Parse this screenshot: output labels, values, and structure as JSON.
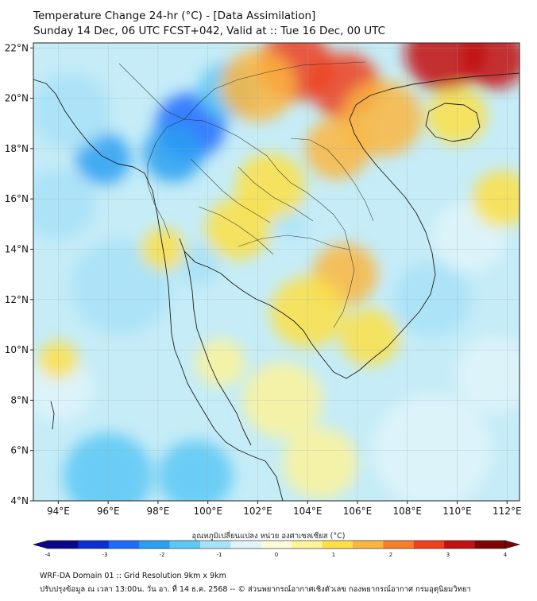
{
  "title": {
    "line1": "Temperature Change 24-hr (°C) - [Data Assimilation]",
    "line2": "Sunday 14 Dec, 06 UTC FCST+042, Valid at :: Tue 16 Dec, 00 UTC"
  },
  "map": {
    "lon_range": [
      93,
      112.5
    ],
    "lat_range": [
      4,
      22.2
    ],
    "lon_ticks": [
      "94°E",
      "96°E",
      "98°E",
      "100°E",
      "102°E",
      "104°E",
      "106°E",
      "108°E",
      "110°E",
      "112°E"
    ],
    "lon_tick_values": [
      94,
      96,
      98,
      100,
      102,
      104,
      106,
      108,
      110,
      112
    ],
    "lat_ticks": [
      "22°N",
      "20°N",
      "18°N",
      "16°N",
      "14°N",
      "12°N",
      "10°N",
      "8°N",
      "6°N",
      "4°N"
    ],
    "lat_tick_values": [
      22,
      20,
      18,
      16,
      14,
      12,
      10,
      8,
      6,
      4
    ],
    "temperature_blobs": [
      {
        "lon": 99.3,
        "lat": 18.9,
        "value": -2.6,
        "r": 1.4
      },
      {
        "lon": 98.6,
        "lat": 17.8,
        "value": -2.1,
        "r": 1.2
      },
      {
        "lon": 95.8,
        "lat": 17.6,
        "value": -1.9,
        "r": 1.1
      },
      {
        "lon": 94.5,
        "lat": 19.5,
        "value": -1.3,
        "r": 1.6
      },
      {
        "lon": 94.0,
        "lat": 15.8,
        "value": -1.2,
        "r": 1.5
      },
      {
        "lon": 100.8,
        "lat": 20.3,
        "value": -1.4,
        "r": 1.2
      },
      {
        "lon": 96.5,
        "lat": 12.5,
        "value": -1.0,
        "r": 2.0
      },
      {
        "lon": 99.6,
        "lat": 13.4,
        "value": -1.1,
        "r": 0.9
      },
      {
        "lon": 103.3,
        "lat": 15.0,
        "value": -0.9,
        "r": 0.6
      },
      {
        "lon": 96.0,
        "lat": 5.0,
        "value": -1.5,
        "r": 1.8
      },
      {
        "lon": 99.5,
        "lat": 5.0,
        "value": -1.4,
        "r": 1.5
      },
      {
        "lon": 94.0,
        "lat": 8.5,
        "value": -0.8,
        "r": 1.4
      },
      {
        "lon": 109.0,
        "lat": 12.0,
        "value": -1.0,
        "r": 1.6
      },
      {
        "lon": 110.5,
        "lat": 14.5,
        "value": -0.8,
        "r": 1.5
      },
      {
        "lon": 109.0,
        "lat": 6.0,
        "value": -0.6,
        "r": 2.4
      },
      {
        "lon": 111.5,
        "lat": 9.0,
        "value": -0.5,
        "r": 1.6
      },
      {
        "lon": 103.5,
        "lat": 21.3,
        "value": 2.7,
        "r": 1.5
      },
      {
        "lon": 105.5,
        "lat": 20.5,
        "value": 2.8,
        "r": 1.4
      },
      {
        "lon": 109.5,
        "lat": 21.8,
        "value": 3.2,
        "r": 1.6
      },
      {
        "lon": 111.5,
        "lat": 21.6,
        "value": 3.0,
        "r": 1.3
      },
      {
        "lon": 102.0,
        "lat": 20.5,
        "value": 1.6,
        "r": 1.5
      },
      {
        "lon": 107.0,
        "lat": 19.2,
        "value": 1.8,
        "r": 1.6
      },
      {
        "lon": 105.2,
        "lat": 18.0,
        "value": 1.4,
        "r": 1.3
      },
      {
        "lon": 110.0,
        "lat": 19.3,
        "value": 1.0,
        "r": 1.2
      },
      {
        "lon": 102.5,
        "lat": 16.5,
        "value": 0.8,
        "r": 1.4
      },
      {
        "lon": 101.2,
        "lat": 14.8,
        "value": 0.8,
        "r": 1.3
      },
      {
        "lon": 105.5,
        "lat": 13.0,
        "value": 1.4,
        "r": 1.3
      },
      {
        "lon": 104.0,
        "lat": 11.5,
        "value": 1.1,
        "r": 1.5
      },
      {
        "lon": 106.5,
        "lat": 10.5,
        "value": 0.9,
        "r": 1.2
      },
      {
        "lon": 94.0,
        "lat": 9.6,
        "value": 1.2,
        "r": 0.8
      },
      {
        "lon": 98.2,
        "lat": 14.0,
        "value": 0.8,
        "r": 0.9
      },
      {
        "lon": 103.0,
        "lat": 8.0,
        "value": 0.6,
        "r": 1.6
      },
      {
        "lon": 104.5,
        "lat": 5.5,
        "value": 0.5,
        "r": 1.5
      },
      {
        "lon": 100.5,
        "lat": 9.5,
        "value": 0.7,
        "r": 1.0
      },
      {
        "lon": 111.8,
        "lat": 16.0,
        "value": 0.9,
        "r": 1.2
      }
    ]
  },
  "colorbar": {
    "label": "อุณหภูมิเปลี่ยนแปลง หน่วย องศาเซลเซียส (°C)",
    "min": -4,
    "max": 4,
    "tick_labels": [
      "-4",
      "-3",
      "-2",
      "-1",
      "0",
      "1",
      "2",
      "3",
      "4"
    ],
    "tick_values": [
      -4,
      -3,
      -2,
      -1,
      0,
      1,
      2,
      3,
      4
    ],
    "colors": [
      "#08088c",
      "#0a2fd6",
      "#1e6bff",
      "#2aa0f2",
      "#5cc8f5",
      "#a8e2f7",
      "#e0f4fa",
      "#fbfbdc",
      "#fdf39a",
      "#fde047",
      "#fbb640",
      "#f97e2a",
      "#ef3f1e",
      "#c31111",
      "#7f0505"
    ]
  },
  "footer": {
    "line1": "WRF-DA Domain 01 :: Grid Resolution 9km x 9km",
    "line2": "ปรับปรุงข้อมูล ณ เวลา 13:00น. วัน อา. ที่ 14 ธ.ค. 2568 -- © ส่วนพยากรณ์อากาศเชิงตัวเลข กองพยากรณ์อากาศ กรมอุตุนิยมวิทยา"
  }
}
